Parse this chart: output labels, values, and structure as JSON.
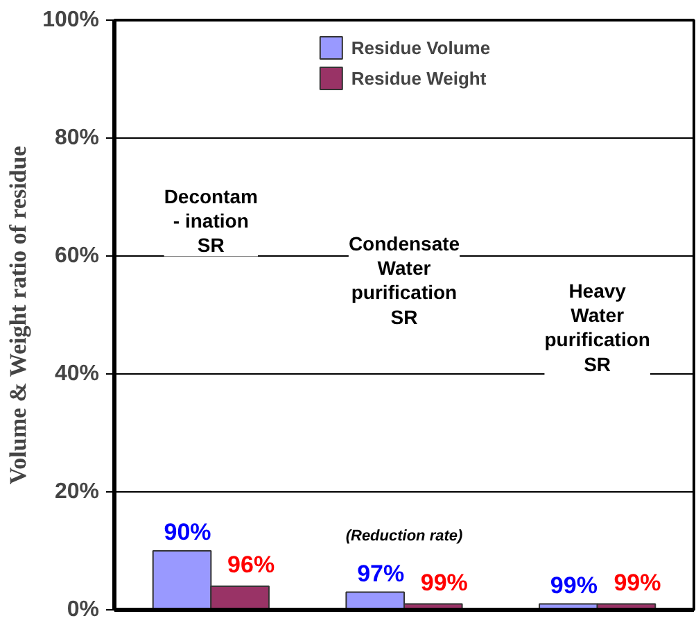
{
  "chart_data": {
    "type": "bar",
    "ylabel": "Volume & Weight ratio of residue",
    "categories": [
      null,
      null,
      null
    ],
    "series": [
      {
        "name": "Residue Volume",
        "color": "#9999ff",
        "values": [
          10,
          3,
          1
        ]
      },
      {
        "name": "Residue Weight",
        "color": "#993366",
        "values": [
          4,
          1,
          1
        ]
      }
    ],
    "ylim": [
      0,
      100
    ],
    "yticks": [
      {
        "value": 0,
        "label": "0%"
      },
      {
        "value": 20,
        "label": "20%"
      },
      {
        "value": 40,
        "label": "40%"
      },
      {
        "value": 60,
        "label": "60%"
      },
      {
        "value": 80,
        "label": "80%"
      },
      {
        "value": 100,
        "label": "100%"
      }
    ],
    "grid": "y",
    "legend": "top",
    "annotations": [
      "Decontam\n- ination\nSR",
      "Condensate\nWater\npurification\nSR",
      "Heavy\nWater\npurification\nSR",
      "(Reduction rate)",
      "90%",
      "97%",
      "99%",
      "96%",
      "99%",
      "99%"
    ]
  }
}
